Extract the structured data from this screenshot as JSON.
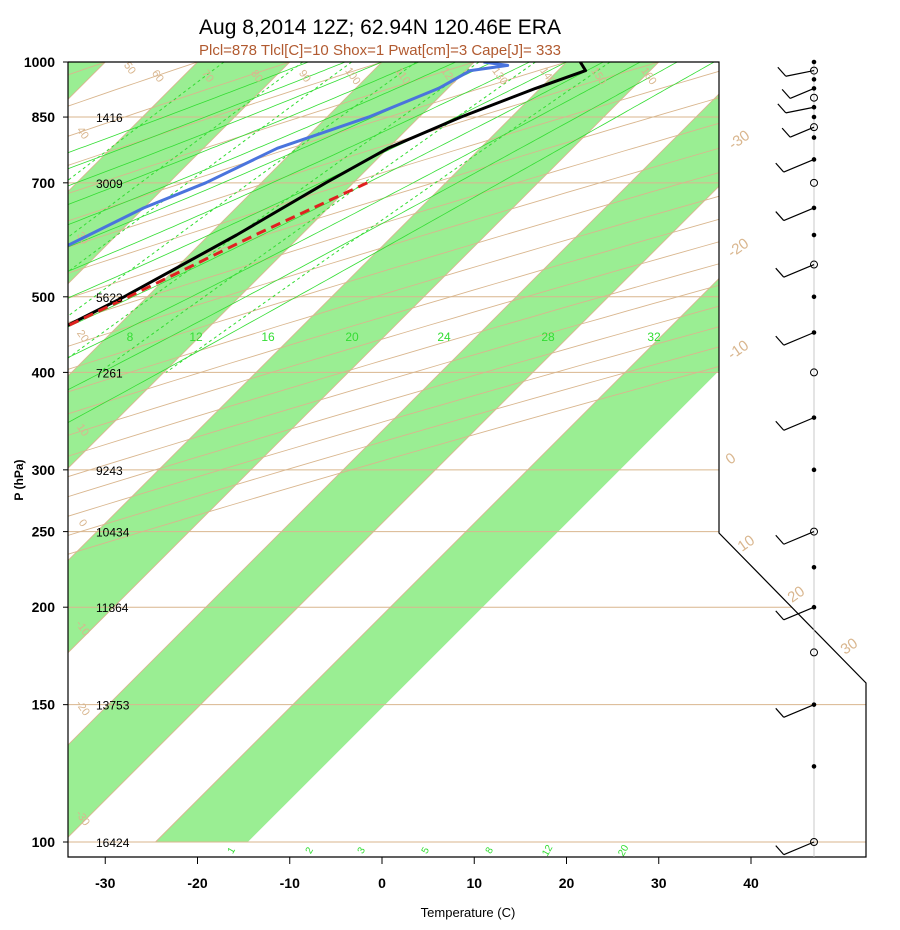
{
  "chart_data": {
    "type": "line",
    "title": "Aug 8,2014 12Z; 62.94N 120.46E ERA",
    "subtitle": "Plcl=878 Tlcl[C]=10 Shox=1 Pwat[cm]=3 Cape[J]= 333",
    "xlabel": "Temperature (C)",
    "ylabel": "P (hPa)",
    "xlim": [
      -34,
      52
    ],
    "ylim": [
      1000,
      100
    ],
    "log_y": true,
    "x_ticks": [
      "-30",
      "-20",
      "-10",
      "0",
      "10",
      "20",
      "30",
      "40"
    ],
    "x_tick_values": [
      -30,
      -20,
      -10,
      0,
      10,
      20,
      30,
      40
    ],
    "pressure_levels": [
      {
        "p": 100,
        "label": "100",
        "height": "16424"
      },
      {
        "p": 150,
        "label": "150",
        "height": "13753"
      },
      {
        "p": 200,
        "label": "200",
        "height": "11864"
      },
      {
        "p": 250,
        "label": "250",
        "height": "10434"
      },
      {
        "p": 300,
        "label": "300",
        "height": "9243"
      },
      {
        "p": 400,
        "label": "400",
        "height": "7261"
      },
      {
        "p": 500,
        "label": "500",
        "height": "5623"
      },
      {
        "p": 700,
        "label": "700",
        "height": "3009"
      },
      {
        "p": 850,
        "label": "850",
        "height": "1416"
      },
      {
        "p": 1000,
        "label": "1000",
        "height": ""
      }
    ],
    "isotherm_labels": [
      {
        "t": 0,
        "text": "0"
      },
      {
        "t": 10,
        "text": "10"
      },
      {
        "t": 20,
        "text": "20"
      },
      {
        "t": 30,
        "text": "30"
      }
    ],
    "isotherm_labels_upper": [
      {
        "t": 0,
        "text": "0"
      },
      {
        "t": -10,
        "text": "-10"
      },
      {
        "t": -20,
        "text": "-20"
      },
      {
        "t": -30,
        "text": "-30"
      }
    ],
    "dry_adiabat_labels": [
      "-30",
      "-20",
      "-10",
      "0",
      "10",
      "20",
      "30",
      "40",
      "50",
      "60",
      "70",
      "80",
      "90",
      "100",
      "110",
      "120",
      "130",
      "140",
      "150",
      "160"
    ],
    "mixing_ratio_labels_top": [
      "8",
      "12",
      "16",
      "20",
      "24",
      "28",
      "32"
    ],
    "mixing_ratio_labels_bottom": [
      "1",
      "2",
      "3",
      "5",
      "8",
      "12",
      "20"
    ],
    "series": [
      {
        "name": "Temperature",
        "color": "#000000",
        "points": [
          {
            "p": 1000,
            "t": 21.5
          },
          {
            "p": 975,
            "t": 23
          },
          {
            "p": 925,
            "t": 19.5
          },
          {
            "p": 850,
            "t": 14.5
          },
          {
            "p": 775,
            "t": 10
          },
          {
            "p": 700,
            "t": 7
          },
          {
            "p": 600,
            "t": 3
          },
          {
            "p": 500,
            "t": -2.5
          },
          {
            "p": 400,
            "t": -10.5
          },
          {
            "p": 300,
            "t": -22.5
          },
          {
            "p": 250,
            "t": -31
          },
          {
            "p": 225,
            "t": -33
          },
          {
            "p": 200,
            "t": -31
          },
          {
            "p": 175,
            "t": -31
          },
          {
            "p": 150,
            "t": -41
          },
          {
            "p": 125,
            "t": -52
          },
          {
            "p": 100,
            "t": -66
          }
        ]
      },
      {
        "name": "Dewpoint",
        "color": "#4a74dd",
        "points": [
          {
            "p": 1000,
            "t": 11
          },
          {
            "p": 990,
            "t": 14
          },
          {
            "p": 975,
            "t": 10.5
          },
          {
            "p": 925,
            "t": 9
          },
          {
            "p": 850,
            "t": 4.5
          },
          {
            "p": 775,
            "t": -2
          },
          {
            "p": 700,
            "t": -6
          },
          {
            "p": 650,
            "t": -10
          },
          {
            "p": 600,
            "t": -13
          },
          {
            "p": 500,
            "t": -20
          },
          {
            "p": 450,
            "t": -23
          },
          {
            "p": 400,
            "t": -28
          },
          {
            "p": 350,
            "t": -35
          },
          {
            "p": 300,
            "t": -34
          },
          {
            "p": 250,
            "t": -36
          },
          {
            "p": 225,
            "t": -41
          },
          {
            "p": 200,
            "t": -48
          },
          {
            "p": 175,
            "t": -55
          },
          {
            "p": 150,
            "t": -65
          },
          {
            "p": 125,
            "t": -73
          },
          {
            "p": 100,
            "t": -84
          }
        ]
      },
      {
        "name": "Parcel",
        "color": "#e02020",
        "dashed": true,
        "points": [
          {
            "p": 700,
            "t": 11.5
          },
          {
            "p": 600,
            "t": 5
          },
          {
            "p": 500,
            "t": -2
          },
          {
            "p": 400,
            "t": -11
          },
          {
            "p": 300,
            "t": -28.5
          }
        ]
      }
    ],
    "wind_barb_levels": [
      100,
      125,
      150,
      175,
      200,
      225,
      250,
      300,
      350,
      400,
      450,
      500,
      550,
      600,
      650,
      700,
      750,
      800,
      825,
      850,
      875,
      900,
      925,
      950,
      975,
      1000
    ],
    "colors": {
      "shade": "#9aee93",
      "isotherm": "#d9b68e",
      "mixing_ratio": "#33dd33",
      "temperature": "#000000",
      "dewpoint": "#4a74dd",
      "parcel": "#e02020",
      "subtitle": "#b15a30"
    }
  }
}
